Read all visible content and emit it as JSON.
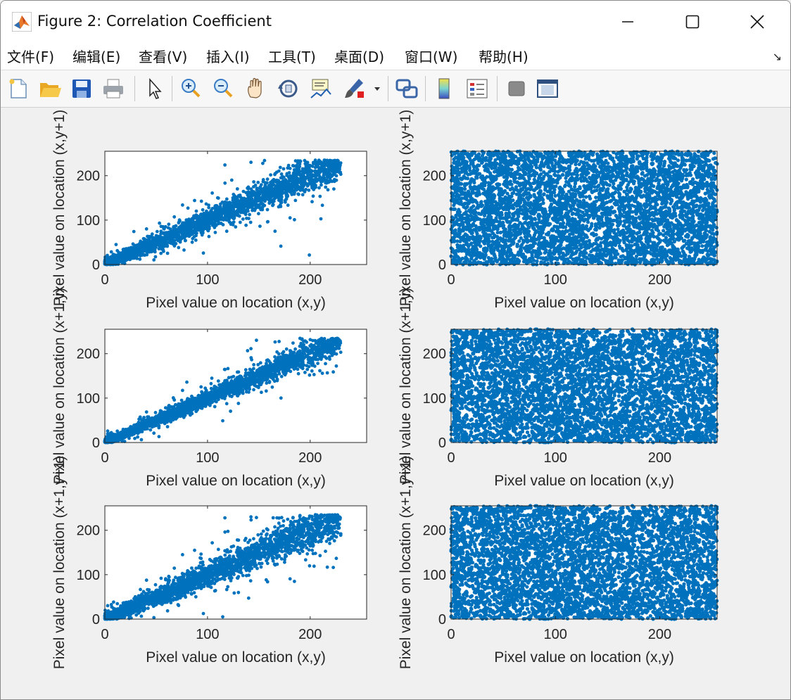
{
  "window": {
    "title": "Figure 2: Correlation Coefficient"
  },
  "menu": {
    "items": [
      "文件(F)",
      "编辑(E)",
      "查看(V)",
      "插入(I)",
      "工具(T)",
      "桌面(D)",
      "窗口(W)",
      "帮助(H)"
    ]
  },
  "toolbar": {
    "icons": [
      "new-figure-icon",
      "open-file-icon",
      "save-icon",
      "print-icon",
      "edit-plot-arrow-icon",
      "zoom-in-icon",
      "zoom-out-icon",
      "pan-hand-icon",
      "rotate-3d-icon",
      "data-cursor-icon",
      "brush-icon",
      "brush-dropdown-icon",
      "link-plot-icon",
      "colorbar-icon",
      "legend-icon",
      "hide-plot-tools-icon",
      "show-plot-tools-icon"
    ]
  },
  "colors": {
    "points": "#0072bd",
    "axes": "#262626"
  },
  "chart_data": [
    {
      "type": "scatter",
      "description_key": "row1-left",
      "xlabel": "Pixel value on location (x,y)",
      "ylabel": "Pixel value on location (x,y+1)",
      "xlim": [
        0,
        255
      ],
      "ylim": [
        0,
        255
      ],
      "xticks": [
        0,
        100,
        200
      ],
      "yticks": [
        0,
        100,
        200
      ],
      "distribution": "correlated",
      "x_range": [
        0,
        230
      ],
      "spread": 15,
      "outlier_spread": 42,
      "points_sample": [
        [
          10,
          12
        ],
        [
          50,
          48
        ],
        [
          100,
          102
        ],
        [
          150,
          148
        ],
        [
          200,
          202
        ],
        [
          225,
          228
        ]
      ]
    },
    {
      "type": "scatter",
      "description_key": "row1-right",
      "xlabel": "Pixel value on location (x,y)",
      "ylabel": "Pixel value on location (x,y+1)",
      "xlim": [
        0,
        255
      ],
      "ylim": [
        0,
        255
      ],
      "xticks": [
        0,
        100,
        200
      ],
      "yticks": [
        0,
        100,
        200
      ],
      "distribution": "uniform",
      "x_range": [
        0,
        255
      ],
      "points_sample": [
        [
          0,
          0
        ],
        [
          255,
          255
        ],
        [
          128,
          128
        ]
      ]
    },
    {
      "type": "scatter",
      "description_key": "row2-left",
      "xlabel": "Pixel value on location (x,y)",
      "ylabel": "Pixel value on location (x+1,y)",
      "xlim": [
        0,
        255
      ],
      "ylim": [
        0,
        255
      ],
      "xticks": [
        0,
        100,
        200
      ],
      "yticks": [
        0,
        100,
        200
      ],
      "distribution": "correlated",
      "x_range": [
        0,
        230
      ],
      "spread": 11,
      "outlier_spread": 30,
      "points_sample": [
        [
          10,
          11
        ],
        [
          50,
          50
        ],
        [
          100,
          101
        ],
        [
          150,
          151
        ],
        [
          200,
          201
        ],
        [
          228,
          229
        ]
      ]
    },
    {
      "type": "scatter",
      "description_key": "row2-right",
      "xlabel": "Pixel value on location (x,y)",
      "ylabel": "Pixel value on location (x+1,y)",
      "xlim": [
        0,
        255
      ],
      "ylim": [
        0,
        255
      ],
      "xticks": [
        0,
        100,
        200
      ],
      "yticks": [
        0,
        100,
        200
      ],
      "distribution": "uniform",
      "x_range": [
        0,
        255
      ],
      "points_sample": [
        [
          0,
          0
        ],
        [
          255,
          255
        ],
        [
          128,
          128
        ]
      ]
    },
    {
      "type": "scatter",
      "description_key": "row3-left",
      "xlabel": "Pixel value on location (x,y)",
      "ylabel": "Pixel value on location (x+1,y+1)",
      "xlim": [
        0,
        255
      ],
      "ylim": [
        0,
        255
      ],
      "xticks": [
        0,
        100,
        200
      ],
      "yticks": [
        0,
        100,
        200
      ],
      "distribution": "correlated",
      "x_range": [
        0,
        230
      ],
      "spread": 17,
      "outlier_spread": 50,
      "points_sample": [
        [
          10,
          12
        ],
        [
          50,
          49
        ],
        [
          100,
          103
        ],
        [
          150,
          147
        ],
        [
          200,
          202
        ],
        [
          228,
          229
        ]
      ]
    },
    {
      "type": "scatter",
      "description_key": "row3-right",
      "xlabel": "Pixel value on location (x,y)",
      "ylabel": "Pixel value on location (x+1,y+1)",
      "xlim": [
        0,
        255
      ],
      "ylim": [
        0,
        255
      ],
      "xticks": [
        0,
        100,
        200
      ],
      "yticks": [
        0,
        100,
        200
      ],
      "distribution": "uniform",
      "x_range": [
        0,
        255
      ],
      "points_sample": [
        [
          0,
          0
        ],
        [
          255,
          255
        ],
        [
          128,
          128
        ]
      ]
    }
  ]
}
